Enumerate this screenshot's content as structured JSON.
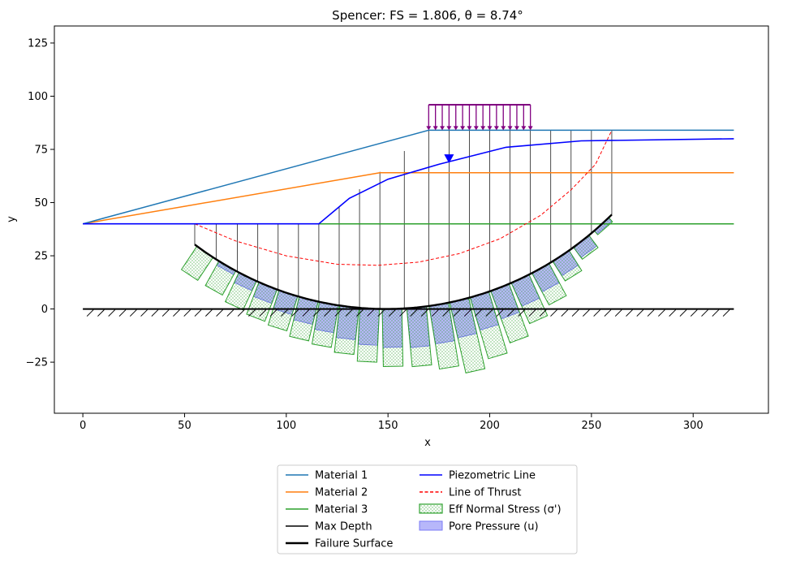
{
  "chart_data": {
    "type": "line",
    "title": "Spencer: FS = 1.806, θ = 8.74°",
    "xlabel": "x",
    "ylabel": "y",
    "xlim": [
      -14,
      337
    ],
    "ylim": [
      -49,
      133
    ],
    "xticks": [
      0,
      50,
      100,
      150,
      200,
      250,
      300
    ],
    "yticks": [
      -25,
      0,
      25,
      50,
      75,
      100,
      125
    ],
    "grid": false,
    "legend_position": "bottom-center",
    "colors": {
      "material1": "#1f77b4",
      "material2": "#ff7f0e",
      "material3": "#2ca02c",
      "piezo": "#0000ff",
      "thrust": "#ff0000",
      "load": "#800080",
      "eff_stress": "#2ca02c",
      "pore": "#7b7bf5"
    },
    "series": [
      {
        "name": "Material 1",
        "x": [
          0,
          170,
          320
        ],
        "y": [
          40,
          84,
          84
        ]
      },
      {
        "name": "Material 2",
        "x": [
          0,
          146,
          320
        ],
        "y": [
          40,
          64,
          64
        ]
      },
      {
        "name": "Material 3",
        "x": [
          0,
          320
        ],
        "y": [
          40,
          40
        ]
      },
      {
        "name": "Max Depth",
        "x": [
          0,
          320
        ],
        "y": [
          0,
          0
        ]
      },
      {
        "name": "Piezometric Line",
        "x": [
          0,
          116,
          131,
          150,
          175,
          208,
          245,
          320
        ],
        "y": [
          40,
          40,
          52,
          61,
          68,
          76,
          79,
          80
        ]
      },
      {
        "name": "Line of Thrust",
        "x": [
          55,
          75,
          100,
          125,
          145,
          165,
          185,
          205,
          225,
          240,
          252,
          260
        ],
        "y": [
          40,
          32,
          25,
          21,
          20.5,
          22,
          26,
          33,
          44,
          56,
          68,
          84
        ]
      }
    ],
    "failure_surface": {
      "name": "Failure Surface",
      "center": [
        149,
        161
      ],
      "radius": 161,
      "x_range": [
        55,
        260
      ]
    },
    "ground_surface_x": [
      0,
      116,
      170,
      320
    ],
    "ground_surface_y": [
      40,
      40,
      84,
      84
    ],
    "slice_boundaries_x": [
      55,
      65.5,
      76,
      86,
      96,
      106,
      116,
      126,
      136,
      146,
      158,
      170,
      180,
      190,
      200,
      210,
      220,
      230,
      240,
      250,
      260
    ],
    "distributed_load": {
      "x_start": 170,
      "x_end": 220,
      "y": 84,
      "height": 12,
      "arrow_count": 16
    },
    "water_table_marker": {
      "x": 180,
      "y": 70
    },
    "slice_stress": {
      "center_x": [
        60,
        71,
        81,
        91,
        101,
        111,
        121,
        131,
        141,
        152,
        164,
        175,
        185,
        195,
        205,
        215,
        225,
        235,
        245,
        255
      ],
      "pore_pressure": [
        0,
        2,
        5,
        7,
        9,
        11,
        13,
        15,
        17,
        18,
        18.5,
        18,
        17,
        16,
        14,
        12,
        10,
        8,
        6,
        2
      ],
      "eff_normal_stress": [
        13,
        11,
        10,
        9,
        8,
        8,
        7,
        7,
        8,
        9,
        9,
        12,
        17,
        14,
        12,
        9,
        7,
        3,
        1,
        0.5
      ]
    },
    "legend": [
      {
        "label": "Material 1",
        "kind": "line",
        "color": "#1f77b4"
      },
      {
        "label": "Material 2",
        "kind": "line",
        "color": "#ff7f0e"
      },
      {
        "label": "Material 3",
        "kind": "line",
        "color": "#2ca02c"
      },
      {
        "label": "Max Depth",
        "kind": "line",
        "color": "#000000"
      },
      {
        "label": "Failure Surface",
        "kind": "thick",
        "color": "#000000"
      },
      {
        "label": "Piezometric Line",
        "kind": "line",
        "color": "#0000ff"
      },
      {
        "label": "Line of Thrust",
        "kind": "dash",
        "color": "#ff0000"
      },
      {
        "label": "Eff Normal Stress (σ')",
        "kind": "hatch",
        "color": "#2ca02c"
      },
      {
        "label": "Pore Pressure (u)",
        "kind": "fill",
        "color": "#7b7bf5"
      }
    ]
  }
}
